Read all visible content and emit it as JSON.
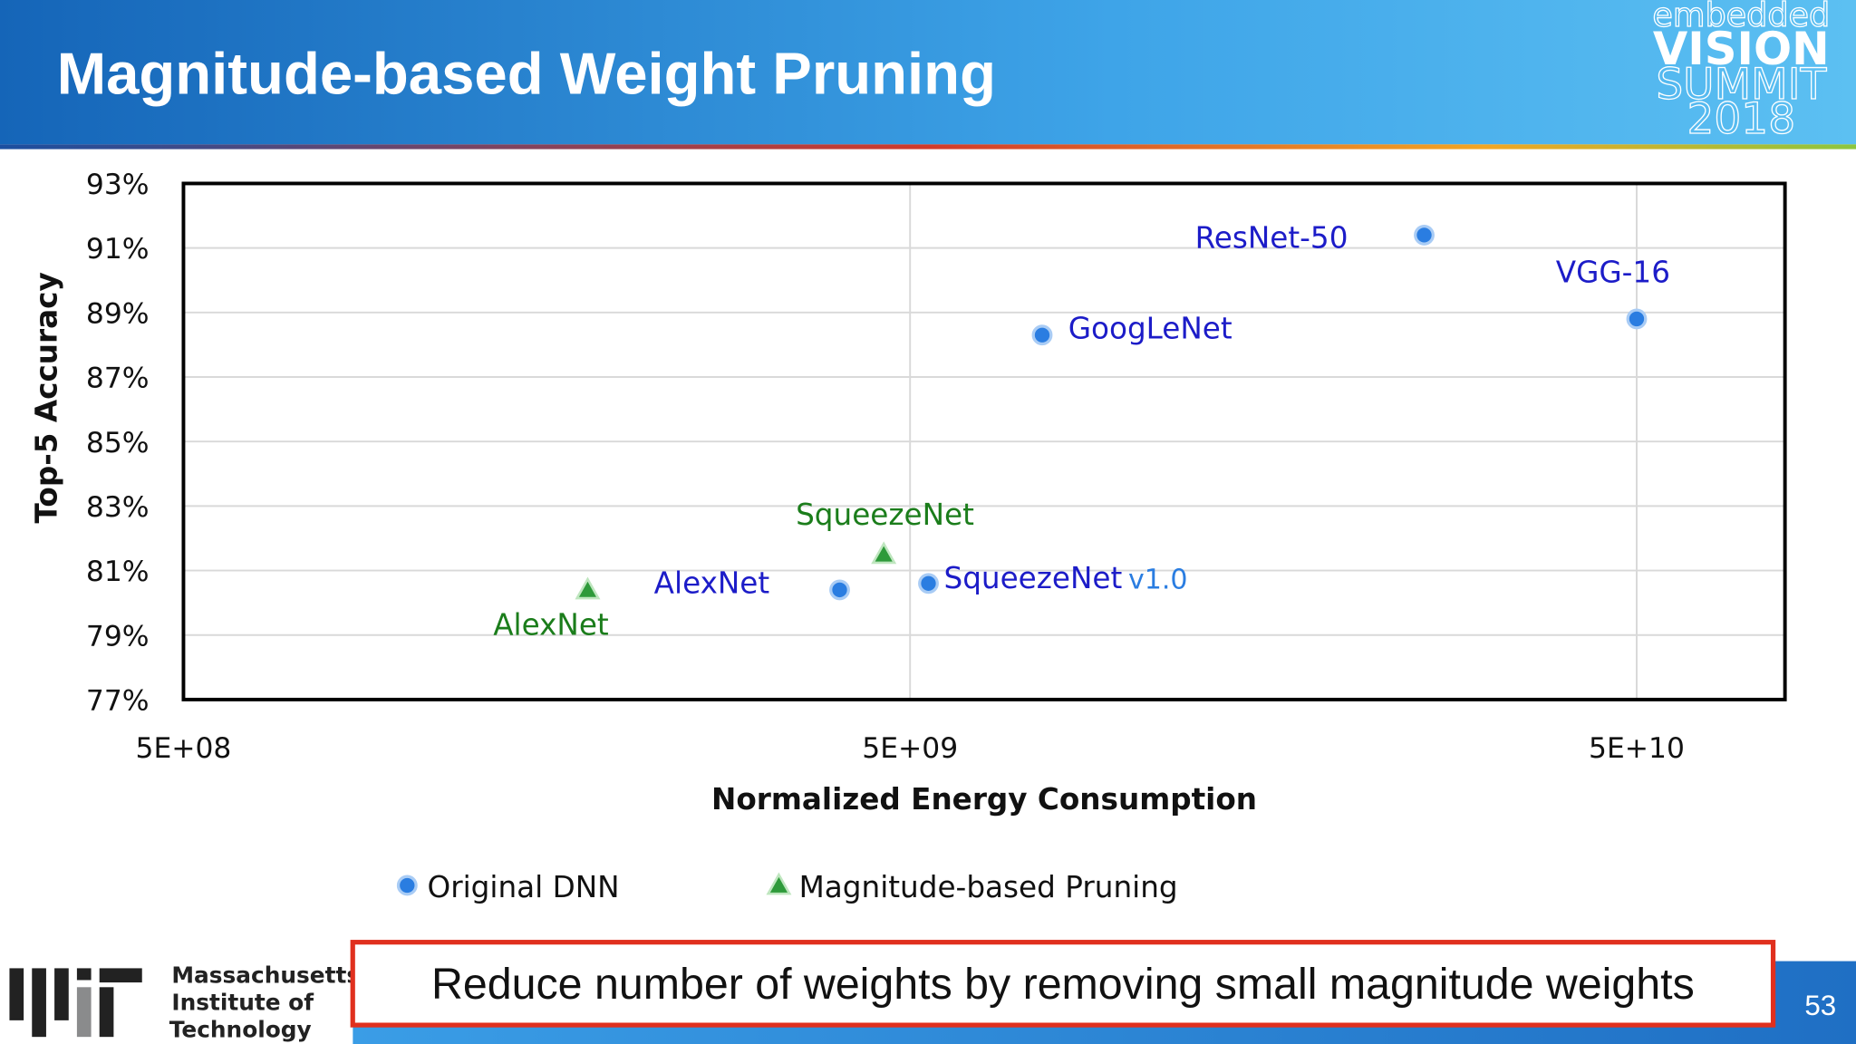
{
  "header": {
    "title": "Magnitude-based Weight Pruning",
    "logo": [
      "embedded",
      "VISION",
      "SUMMIT",
      "2018"
    ]
  },
  "chart_data": {
    "type": "scatter",
    "x_label": "Normalized Energy Consumption",
    "y_label": "Top-5 Accuracy",
    "xscale": "log",
    "xlim": [
      500000000,
      80000000000
    ],
    "ylim": [
      77,
      93
    ],
    "xticks": [
      {
        "value": 500000000,
        "label": "5E+08"
      },
      {
        "value": 5000000000,
        "label": "5E+09"
      },
      {
        "value": 50000000000,
        "label": "5E+10"
      }
    ],
    "yticks": [
      {
        "value": 77,
        "label": "77%"
      },
      {
        "value": 79,
        "label": "79%"
      },
      {
        "value": 81,
        "label": "81%"
      },
      {
        "value": 83,
        "label": "83%"
      },
      {
        "value": 85,
        "label": "85%"
      },
      {
        "value": 87,
        "label": "87%"
      },
      {
        "value": 89,
        "label": "89%"
      },
      {
        "value": 91,
        "label": "91%"
      },
      {
        "value": 93,
        "label": "93%"
      }
    ],
    "grid": true,
    "series": [
      {
        "name": "Original DNN",
        "color": "#2a7de1",
        "label_color": "#1c1cc8",
        "marker": "circle",
        "x": [
          4000000000,
          5300000000,
          7600000000,
          25500000000,
          50000000000
        ],
        "values": [
          80.4,
          80.6,
          88.3,
          91.4,
          88.8
        ],
        "labels": [
          "AlexNet",
          "SqueezeNet",
          "GoogLeNet",
          "ResNet-50",
          "VGG-16"
        ]
      },
      {
        "name": "Magnitude-based Pruning",
        "color": "#2e9a3a",
        "label_color": "#1b7d1b",
        "marker": "triangle",
        "x": [
          1800000000,
          4600000000
        ],
        "values": [
          80.4,
          81.5
        ],
        "labels": [
          "AlexNet",
          "SqueezeNet"
        ]
      }
    ],
    "annotations": [
      {
        "text": "v1.0"
      }
    ]
  },
  "footer": {
    "institution": [
      "Massachusetts",
      "Institute of",
      "Technology"
    ],
    "callout": "Reduce number of weights by removing small magnitude weights",
    "page": "53"
  }
}
